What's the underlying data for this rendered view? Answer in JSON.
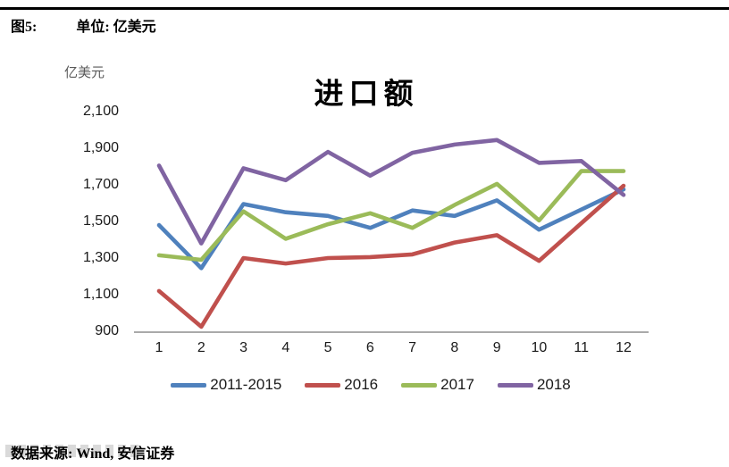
{
  "header": {
    "figure_label": "图5:",
    "unit_label": "单位: 亿美元"
  },
  "footer": {
    "source_label": "数据来源: Wind, 安信证券"
  },
  "chart_data": {
    "type": "line",
    "title": "进口额",
    "ylabel": "亿美元",
    "xlabel": "",
    "categories": [
      "1",
      "2",
      "3",
      "4",
      "5",
      "6",
      "7",
      "8",
      "9",
      "10",
      "11",
      "12"
    ],
    "ylim": [
      900,
      2100
    ],
    "yticks": [
      2100,
      1900,
      1700,
      1500,
      1300,
      1100,
      900
    ],
    "grid": false,
    "legend_position": "bottom",
    "axis_color": "#9e9e9e",
    "series": [
      {
        "name": "2011-2015",
        "color": "#4F81BD",
        "values": [
          1485,
          1250,
          1600,
          1555,
          1535,
          1470,
          1565,
          1535,
          1620,
          1460,
          1570,
          1680
        ]
      },
      {
        "name": "2016",
        "color": "#C0504D",
        "values": [
          1125,
          930,
          1305,
          1275,
          1305,
          1310,
          1325,
          1390,
          1430,
          1290,
          1495,
          1700
        ]
      },
      {
        "name": "2017",
        "color": "#9BBB59",
        "values": [
          1320,
          1295,
          1560,
          1410,
          1490,
          1550,
          1470,
          1595,
          1710,
          1510,
          1780,
          1780
        ]
      },
      {
        "name": "2018",
        "color": "#8064A2",
        "values": [
          1810,
          1385,
          1795,
          1730,
          1885,
          1755,
          1880,
          1925,
          1950,
          1825,
          1835,
          1650
        ]
      }
    ]
  }
}
